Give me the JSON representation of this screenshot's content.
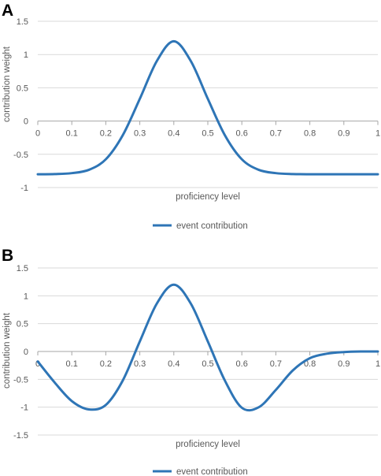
{
  "colors": {
    "series": "#2E75B6"
  },
  "chart_data": [
    {
      "panel": "A",
      "type": "line",
      "xlabel": "proficiency level",
      "ylabel": "contribution weight",
      "xlim": [
        0,
        1
      ],
      "ylim": [
        -1,
        1.5
      ],
      "x_ticks": [
        "0",
        "0.1",
        "0.2",
        "0.3",
        "0.4",
        "0.5",
        "0.6",
        "0.7",
        "0.8",
        "0.9",
        "1"
      ],
      "y_ticks": [
        "1.5",
        "1",
        "0.5",
        "0",
        "-0.5",
        "-1"
      ],
      "legend": "bottom",
      "grid": true,
      "series": [
        {
          "name": "event contribution",
          "x": [
            0,
            0.05,
            0.1,
            0.15,
            0.2,
            0.25,
            0.3,
            0.35,
            0.4,
            0.45,
            0.5,
            0.55,
            0.6,
            0.65,
            0.7,
            0.75,
            0.8,
            0.85,
            0.9,
            0.95,
            1
          ],
          "y": [
            -0.8,
            -0.797,
            -0.783,
            -0.734,
            -0.575,
            -0.212,
            0.334,
            0.902,
            1.2,
            0.902,
            0.334,
            -0.212,
            -0.575,
            -0.734,
            -0.783,
            -0.797,
            -0.8,
            -0.8,
            -0.8,
            -0.8,
            -0.8
          ]
        }
      ]
    },
    {
      "panel": "B",
      "type": "line",
      "xlabel": "proficiency level",
      "ylabel": "contribution weight",
      "xlim": [
        0,
        1
      ],
      "ylim": [
        -1.5,
        1.5
      ],
      "x_ticks": [
        "0",
        "0.1",
        "0.2",
        "0.3",
        "0.4",
        "0.5",
        "0.6",
        "0.7",
        "0.8",
        "0.9",
        "1"
      ],
      "y_ticks": [
        "1.5",
        "1",
        "0.5",
        "0",
        "-0.5",
        "-1",
        "-1.5"
      ],
      "legend": "bottom",
      "grid": true,
      "series": [
        {
          "name": "event contribution",
          "x": [
            0,
            0.05,
            0.1,
            0.15,
            0.2,
            0.25,
            0.3,
            0.35,
            0.4,
            0.45,
            0.5,
            0.55,
            0.6,
            0.65,
            0.7,
            0.75,
            0.8,
            0.85,
            0.9,
            0.95,
            1
          ],
          "y": [
            -0.18,
            -0.56,
            -0.89,
            -1.04,
            -0.96,
            -0.52,
            0.18,
            0.86,
            1.2,
            0.86,
            0.18,
            -0.52,
            -1.01,
            -1.0,
            -0.69,
            -0.34,
            -0.12,
            -0.04,
            -0.01,
            0,
            0
          ]
        }
      ]
    }
  ]
}
